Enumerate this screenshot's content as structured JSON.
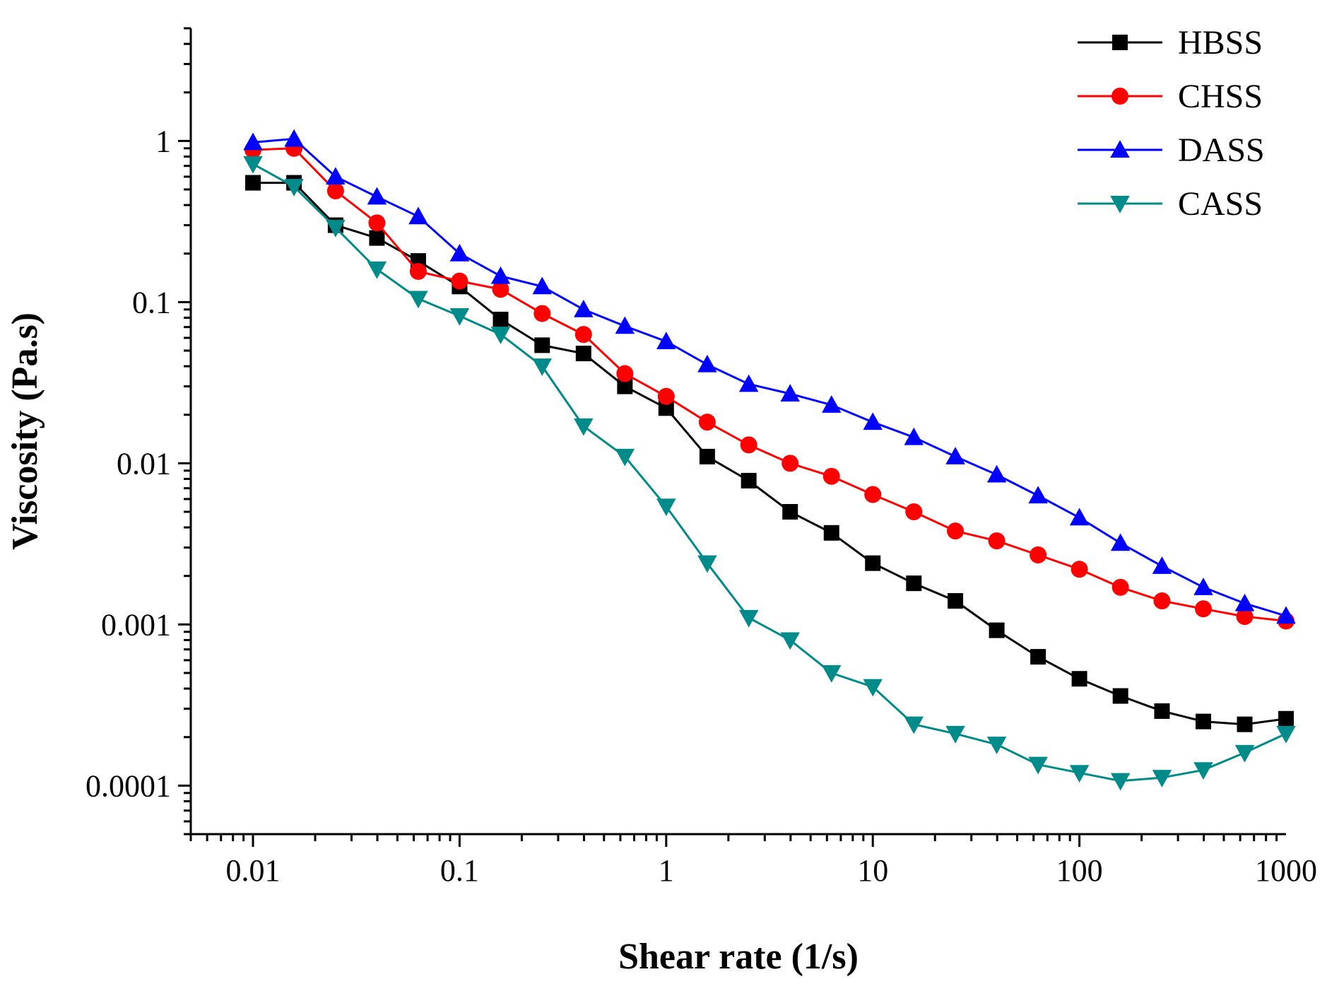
{
  "chart_data": {
    "type": "line",
    "title": "",
    "xlabel": "Shear rate (1/s)",
    "ylabel": "Viscosity (Pa.s)",
    "xscale": "log",
    "yscale": "log",
    "xlim": [
      0.005,
      1000
    ],
    "ylim": [
      5e-05,
      5
    ],
    "xticks": [
      {
        "value": 0.01,
        "label": "0.01"
      },
      {
        "value": 0.1,
        "label": "0.1"
      },
      {
        "value": 1,
        "label": "1"
      },
      {
        "value": 10,
        "label": "10"
      },
      {
        "value": 100,
        "label": "100"
      },
      {
        "value": 1000,
        "label": "1000"
      }
    ],
    "yticks": [
      {
        "value": 0.0001,
        "label": "0.0001"
      },
      {
        "value": 0.001,
        "label": "0.001"
      },
      {
        "value": 0.01,
        "label": "0.01"
      },
      {
        "value": 0.1,
        "label": "0.1"
      },
      {
        "value": 1,
        "label": "1"
      }
    ],
    "legend_position": "top-right",
    "x": [
      0.01,
      0.0158,
      0.0251,
      0.0398,
      0.0631,
      0.1,
      0.158,
      0.251,
      0.398,
      0.631,
      1,
      1.58,
      2.51,
      3.98,
      6.31,
      10,
      15.8,
      25.1,
      39.8,
      63.1,
      100,
      158,
      251,
      398,
      631,
      1000
    ],
    "series": [
      {
        "name": "HBSS",
        "color": "#000000",
        "marker": "square",
        "values": [
          0.55,
          0.55,
          0.3,
          0.25,
          0.18,
          0.125,
          0.078,
          0.054,
          0.048,
          0.03,
          0.022,
          0.011,
          0.0078,
          0.005,
          0.0037,
          0.0024,
          0.0018,
          0.0014,
          0.00092,
          0.00063,
          0.00046,
          0.00036,
          0.00029,
          0.00025,
          0.00024,
          0.00026
        ]
      },
      {
        "name": "CHSS",
        "color": "#ff0000",
        "marker": "circle",
        "values": [
          0.88,
          0.9,
          0.49,
          0.31,
          0.155,
          0.135,
          0.12,
          0.085,
          0.063,
          0.036,
          0.026,
          0.018,
          0.013,
          0.01,
          0.0083,
          0.0064,
          0.005,
          0.0038,
          0.0033,
          0.0027,
          0.0022,
          0.0017,
          0.0014,
          0.00125,
          0.00112,
          0.00105
        ]
      },
      {
        "name": "DASS",
        "color": "#0000ff",
        "marker": "triangle-up",
        "values": [
          0.98,
          1.03,
          0.6,
          0.45,
          0.34,
          0.2,
          0.145,
          0.125,
          0.09,
          0.071,
          0.057,
          0.041,
          0.031,
          0.027,
          0.023,
          0.018,
          0.0145,
          0.011,
          0.0085,
          0.0063,
          0.0046,
          0.0032,
          0.0023,
          0.0017,
          0.00135,
          0.00113
        ]
      },
      {
        "name": "CASS",
        "color": "#008b8b",
        "marker": "triangle-down",
        "values": [
          0.72,
          0.52,
          0.29,
          0.16,
          0.105,
          0.082,
          0.063,
          0.04,
          0.017,
          0.011,
          0.0054,
          0.0024,
          0.0011,
          0.0008,
          0.0005,
          0.00041,
          0.00024,
          0.00021,
          0.00018,
          0.000135,
          0.00012,
          0.000107,
          0.000112,
          0.000125,
          0.00016,
          0.00021
        ]
      }
    ]
  }
}
